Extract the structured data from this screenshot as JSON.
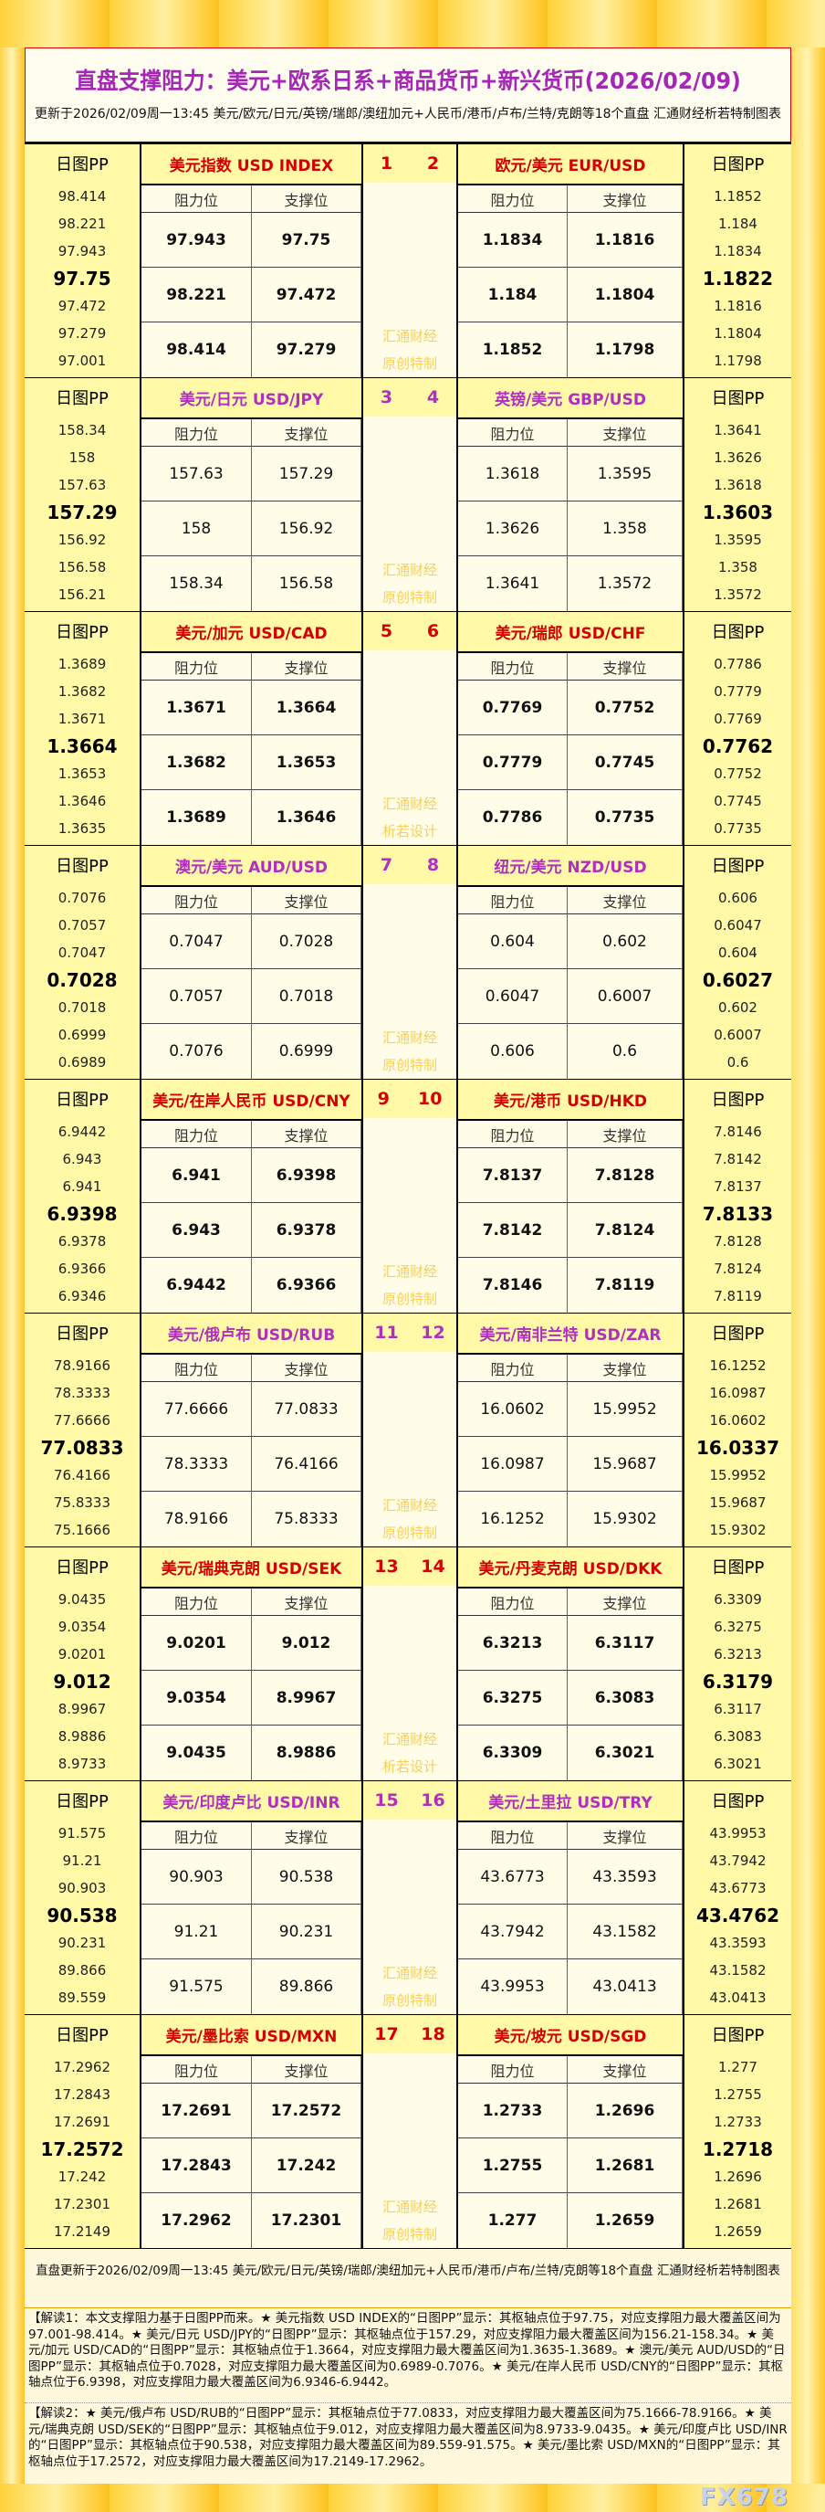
{
  "title": "直盘支撑阻力：美元+欧系日系+商品货币+新兴货币(2026/02/09)",
  "subtitle": "更新于2026/02/09周一13:45 美元/欧元/日元/英镑/瑞郎/澳纽加元+人民币/港币/卢布/兰特/克朗等18个直盘 汇通财经析若特制图表",
  "labels": {
    "pp": "日图PP",
    "res": "阻力位",
    "sup": "支撑位",
    "wm1": "汇通财经"
  },
  "colors": {
    "red": "#d40000",
    "purple": "#b02ec0",
    "watermark": "#f7cf5a"
  },
  "blocks": [
    {
      "style": "red",
      "wm2": "原创特制",
      "a": {
        "name": "美元指数 USD INDEX",
        "no": "1",
        "pp": [
          "98.414",
          "98.221",
          "97.943",
          "97.75",
          "97.472",
          "97.279",
          "97.001"
        ],
        "rows": [
          [
            "97.943",
            "97.75"
          ],
          [
            "98.221",
            "97.472"
          ],
          [
            "98.414",
            "97.279"
          ]
        ]
      },
      "b": {
        "name": "欧元/美元 EUR/USD",
        "no": "2",
        "pp": [
          "1.1852",
          "1.184",
          "1.1834",
          "1.1822",
          "1.1816",
          "1.1804",
          "1.1798"
        ],
        "rows": [
          [
            "1.1834",
            "1.1816"
          ],
          [
            "1.184",
            "1.1804"
          ],
          [
            "1.1852",
            "1.1798"
          ]
        ]
      }
    },
    {
      "style": "purple",
      "wm2": "原创特制",
      "a": {
        "name": "美元/日元 USD/JPY",
        "no": "3",
        "pp": [
          "158.34",
          "158",
          "157.63",
          "157.29",
          "156.92",
          "156.58",
          "156.21"
        ],
        "rows": [
          [
            "157.63",
            "157.29"
          ],
          [
            "158",
            "156.92"
          ],
          [
            "158.34",
            "156.58"
          ]
        ]
      },
      "b": {
        "name": "英镑/美元 GBP/USD",
        "no": "4",
        "pp": [
          "1.3641",
          "1.3626",
          "1.3618",
          "1.3603",
          "1.3595",
          "1.358",
          "1.3572"
        ],
        "rows": [
          [
            "1.3618",
            "1.3595"
          ],
          [
            "1.3626",
            "1.358"
          ],
          [
            "1.3641",
            "1.3572"
          ]
        ]
      }
    },
    {
      "style": "red",
      "wm2": "析若设计",
      "a": {
        "name": "美元/加元 USD/CAD",
        "no": "5",
        "pp": [
          "1.3689",
          "1.3682",
          "1.3671",
          "1.3664",
          "1.3653",
          "1.3646",
          "1.3635"
        ],
        "rows": [
          [
            "1.3671",
            "1.3664"
          ],
          [
            "1.3682",
            "1.3653"
          ],
          [
            "1.3689",
            "1.3646"
          ]
        ]
      },
      "b": {
        "name": "美元/瑞郎 USD/CHF",
        "no": "6",
        "pp": [
          "0.7786",
          "0.7779",
          "0.7769",
          "0.7762",
          "0.7752",
          "0.7745",
          "0.7735"
        ],
        "rows": [
          [
            "0.7769",
            "0.7752"
          ],
          [
            "0.7779",
            "0.7745"
          ],
          [
            "0.7786",
            "0.7735"
          ]
        ]
      }
    },
    {
      "style": "purple",
      "wm2": "原创特制",
      "a": {
        "name": "澳元/美元 AUD/USD",
        "no": "7",
        "pp": [
          "0.7076",
          "0.7057",
          "0.7047",
          "0.7028",
          "0.7018",
          "0.6999",
          "0.6989"
        ],
        "rows": [
          [
            "0.7047",
            "0.7028"
          ],
          [
            "0.7057",
            "0.7018"
          ],
          [
            "0.7076",
            "0.6999"
          ]
        ]
      },
      "b": {
        "name": "纽元/美元 NZD/USD",
        "no": "8",
        "pp": [
          "0.606",
          "0.6047",
          "0.604",
          "0.6027",
          "0.602",
          "0.6007",
          "0.6"
        ],
        "rows": [
          [
            "0.604",
            "0.602"
          ],
          [
            "0.6047",
            "0.6007"
          ],
          [
            "0.606",
            "0.6"
          ]
        ]
      }
    },
    {
      "style": "red",
      "wm2": "原创特制",
      "a": {
        "name": "美元/在岸人民币 USD/CNY",
        "no": "9",
        "pp": [
          "6.9442",
          "6.943",
          "6.941",
          "6.9398",
          "6.9378",
          "6.9366",
          "6.9346"
        ],
        "rows": [
          [
            "6.941",
            "6.9398"
          ],
          [
            "6.943",
            "6.9378"
          ],
          [
            "6.9442",
            "6.9366"
          ]
        ]
      },
      "b": {
        "name": "美元/港币 USD/HKD",
        "no": "10",
        "pp": [
          "7.8146",
          "7.8142",
          "7.8137",
          "7.8133",
          "7.8128",
          "7.8124",
          "7.8119"
        ],
        "rows": [
          [
            "7.8137",
            "7.8128"
          ],
          [
            "7.8142",
            "7.8124"
          ],
          [
            "7.8146",
            "7.8119"
          ]
        ]
      }
    },
    {
      "style": "purple",
      "wm2": "原创特制",
      "a": {
        "name": "美元/俄卢布 USD/RUB",
        "no": "11",
        "pp": [
          "78.9166",
          "78.3333",
          "77.6666",
          "77.0833",
          "76.4166",
          "75.8333",
          "75.1666"
        ],
        "rows": [
          [
            "77.6666",
            "77.0833"
          ],
          [
            "78.3333",
            "76.4166"
          ],
          [
            "78.9166",
            "75.8333"
          ]
        ]
      },
      "b": {
        "name": "美元/南非兰特 USD/ZAR",
        "no": "12",
        "pp": [
          "16.1252",
          "16.0987",
          "16.0602",
          "16.0337",
          "15.9952",
          "15.9687",
          "15.9302"
        ],
        "rows": [
          [
            "16.0602",
            "15.9952"
          ],
          [
            "16.0987",
            "15.9687"
          ],
          [
            "16.1252",
            "15.9302"
          ]
        ]
      }
    },
    {
      "style": "red",
      "wm2": "析若设计",
      "a": {
        "name": "美元/瑞典克朗 USD/SEK",
        "no": "13",
        "pp": [
          "9.0435",
          "9.0354",
          "9.0201",
          "9.012",
          "8.9967",
          "8.9886",
          "8.9733"
        ],
        "rows": [
          [
            "9.0201",
            "9.012"
          ],
          [
            "9.0354",
            "8.9967"
          ],
          [
            "9.0435",
            "8.9886"
          ]
        ]
      },
      "b": {
        "name": "美元/丹麦克朗 USD/DKK",
        "no": "14",
        "pp": [
          "6.3309",
          "6.3275",
          "6.3213",
          "6.3179",
          "6.3117",
          "6.3083",
          "6.3021"
        ],
        "rows": [
          [
            "6.3213",
            "6.3117"
          ],
          [
            "6.3275",
            "6.3083"
          ],
          [
            "6.3309",
            "6.3021"
          ]
        ]
      }
    },
    {
      "style": "purple",
      "wm2": "原创特制",
      "a": {
        "name": "美元/印度卢比 USD/INR",
        "no": "15",
        "pp": [
          "91.575",
          "91.21",
          "90.903",
          "90.538",
          "90.231",
          "89.866",
          "89.559"
        ],
        "rows": [
          [
            "90.903",
            "90.538"
          ],
          [
            "91.21",
            "90.231"
          ],
          [
            "91.575",
            "89.866"
          ]
        ]
      },
      "b": {
        "name": "美元/土里拉 USD/TRY",
        "no": "16",
        "pp": [
          "43.9953",
          "43.7942",
          "43.6773",
          "43.4762",
          "43.3593",
          "43.1582",
          "43.0413"
        ],
        "rows": [
          [
            "43.6773",
            "43.3593"
          ],
          [
            "43.7942",
            "43.1582"
          ],
          [
            "43.9953",
            "43.0413"
          ]
        ]
      }
    },
    {
      "style": "red",
      "wm2": "原创特制",
      "a": {
        "name": "美元/墨比索 USD/MXN",
        "no": "17",
        "pp": [
          "17.2962",
          "17.2843",
          "17.2691",
          "17.2572",
          "17.242",
          "17.2301",
          "17.2149"
        ],
        "rows": [
          [
            "17.2691",
            "17.2572"
          ],
          [
            "17.2843",
            "17.242"
          ],
          [
            "17.2962",
            "17.2301"
          ]
        ]
      },
      "b": {
        "name": "美元/坡元 USD/SGD",
        "no": "18",
        "pp": [
          "1.277",
          "1.2755",
          "1.2733",
          "1.2718",
          "1.2696",
          "1.2681",
          "1.2659"
        ],
        "rows": [
          [
            "1.2733",
            "1.2696"
          ],
          [
            "1.2755",
            "1.2681"
          ],
          [
            "1.277",
            "1.2659"
          ]
        ]
      }
    }
  ],
  "footer": {
    "update": "直盘更新于2026/02/09周一13:45 美元/欧元/日元/英镑/瑞郎/澳纽加元+人民币/港币/卢布/兰特/克朗等18个直盘 汇通财经析若特制图表",
    "note1": "【解读1：本文支撑阻力基于日图PP而来。★ 美元指数 USD INDEX的“日图PP”显示：其枢轴点位于97.75，对应支撑阻力最大覆盖区间为97.001-98.414。★ 美元/日元 USD/JPY的“日图PP”显示：其枢轴点位于157.29，对应支撑阻力最大覆盖区间为156.21-158.34。★ 美元/加元 USD/CAD的“日图PP”显示：其枢轴点位于1.3664，对应支撑阻力最大覆盖区间为1.3635-1.3689。★ 澳元/美元 AUD/USD的“日图PP”显示：其枢轴点位于0.7028，对应支撑阻力最大覆盖区间为0.6989-0.7076。★ 美元/在岸人民币 USD/CNY的“日图PP”显示：其枢轴点位于6.9398，对应支撑阻力最大覆盖区间为6.9346-6.9442。",
    "note2": "【解读2：★ 美元/俄卢布 USD/RUB的“日图PP”显示：其枢轴点位于77.0833，对应支撑阻力最大覆盖区间为75.1666-78.9166。★ 美元/瑞典克朗 USD/SEK的“日图PP”显示：其枢轴点位于9.012，对应支撑阻力最大覆盖区间为8.9733-9.0435。★ 美元/印度卢比 USD/INR的“日图PP”显示：其枢轴点位于90.538，对应支撑阻力最大覆盖区间为89.559-91.575。★ 美元/墨比索 USD/MXN的“日图PP”显示：其枢轴点位于17.2572，对应支撑阻力最大覆盖区间为17.2149-17.2962。"
  },
  "logo": "FX678"
}
